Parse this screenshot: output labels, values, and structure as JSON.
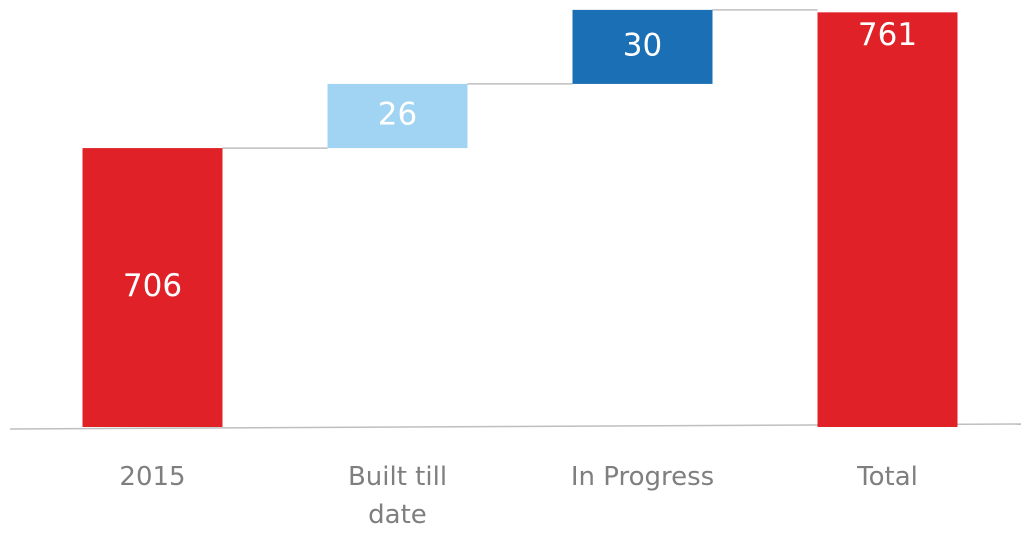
{
  "chart_data": {
    "type": "waterfall",
    "categories": [
      "2015",
      "Built till date",
      "In Progress",
      "Total"
    ],
    "values": [
      706,
      26,
      30,
      761
    ],
    "measure": [
      "absolute",
      "relative",
      "relative",
      "total"
    ],
    "colors": [
      "#e02127",
      "#a0d4f2",
      "#1a6fb5",
      "#e02127"
    ],
    "ylim": [
      593,
      766
    ]
  }
}
